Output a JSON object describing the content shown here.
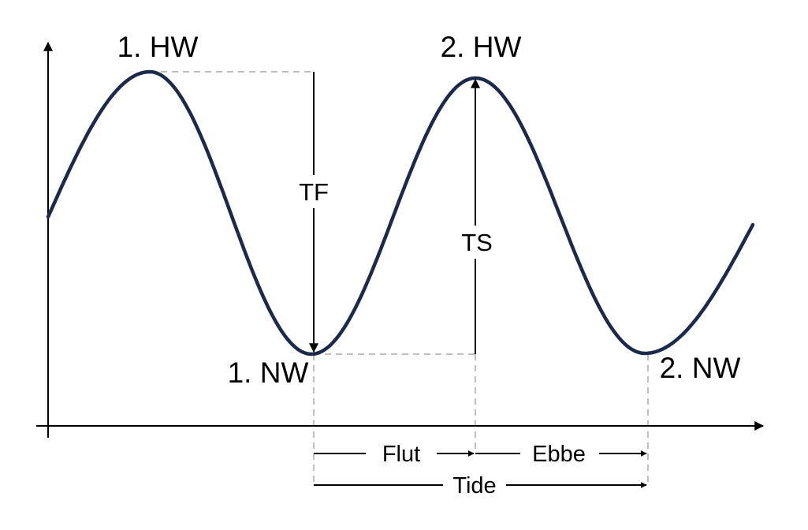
{
  "diagram": {
    "labels": {
      "hw1": "1. HW",
      "hw2": "2. HW",
      "nw1": "1. NW",
      "nw2": "2. NW",
      "tf": "TF",
      "ts": "TS",
      "flut": "Flut",
      "ebbe": "Ebbe",
      "tide": "Tide"
    },
    "colors": {
      "curve": "#1b2a4a",
      "axis": "#000000",
      "guide": "#bfbfbf"
    }
  }
}
